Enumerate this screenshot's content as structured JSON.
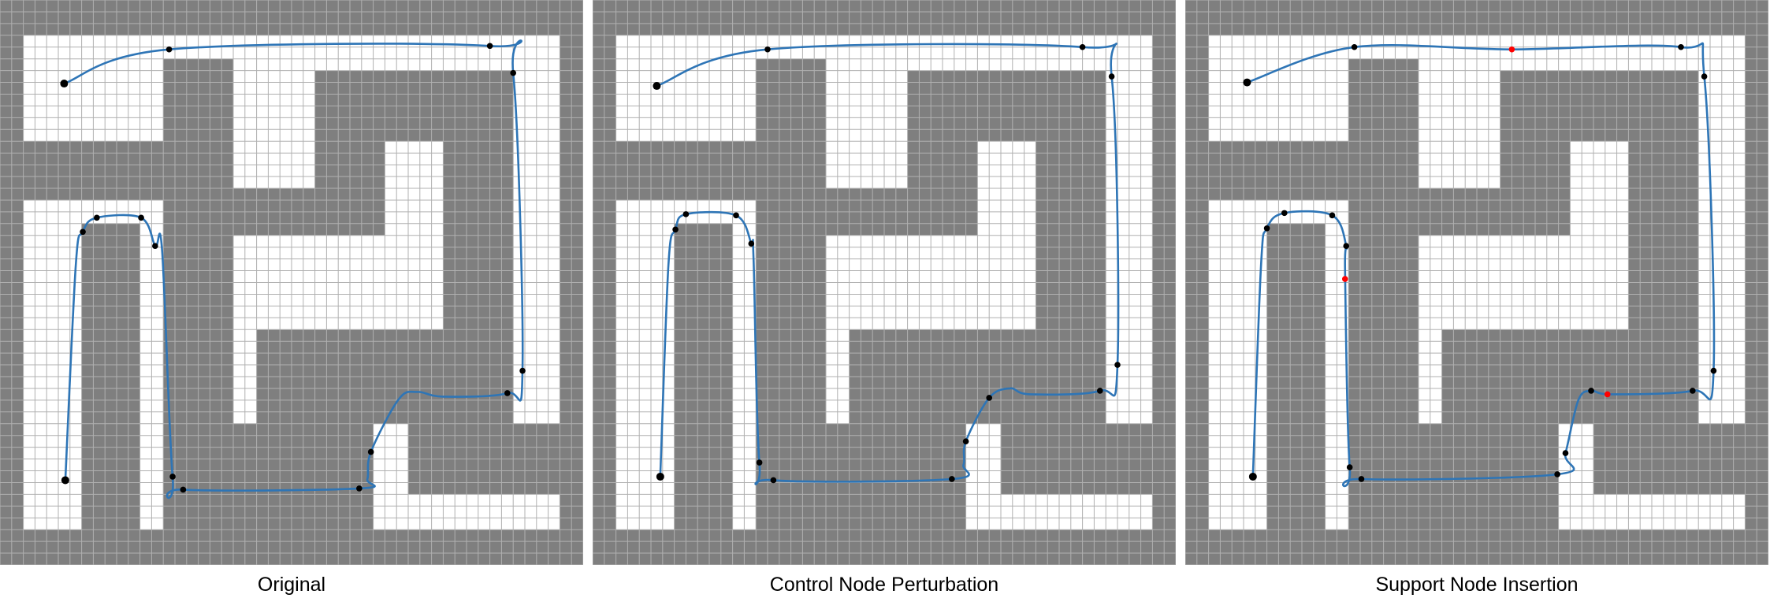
{
  "captions": {
    "original": "Original",
    "perturbation": "Control Node Perturbation",
    "insertion": "Support Node Insertion"
  },
  "colors": {
    "wall": "#7f7f7f",
    "free": "#ffffff",
    "grid_line": "#b0b0b0",
    "path": "#2e75b6",
    "control_node": "#000000",
    "support_node": "#ff0000"
  },
  "grid": {
    "cols": 50,
    "rows": 48,
    "walls": [
      [
        0,
        0,
        50,
        3
      ],
      [
        0,
        0,
        2,
        48
      ],
      [
        48,
        0,
        2,
        48
      ],
      [
        0,
        45,
        50,
        3
      ],
      [
        0,
        12,
        14,
        5
      ],
      [
        14,
        5,
        6,
        40
      ],
      [
        20,
        16,
        13,
        4
      ],
      [
        27,
        6,
        17,
        6
      ],
      [
        27,
        6,
        6,
        14
      ],
      [
        38,
        6,
        6,
        30
      ],
      [
        22,
        28,
        22,
        8
      ],
      [
        20,
        36,
        12,
        6
      ],
      [
        20,
        42,
        12,
        3
      ],
      [
        7,
        19,
        5,
        26
      ],
      [
        35,
        36,
        13,
        6
      ]
    ]
  },
  "panels": [
    {
      "path": [
        [
          5.5,
          7.1
        ],
        [
          14.5,
          4.2
        ],
        [
          42.0,
          3.9
        ],
        [
          44.0,
          6.2
        ],
        [
          44.8,
          31.5
        ],
        [
          43.5,
          33.4
        ],
        [
          38.0,
          33.7
        ],
        [
          35.8,
          33.3
        ],
        [
          34.2,
          33.9
        ],
        [
          31.8,
          38.4
        ],
        [
          31.5,
          40.7
        ],
        [
          30.8,
          41.5
        ],
        [
          15.7,
          41.6
        ],
        [
          14.8,
          40.5
        ],
        [
          13.9,
          21.3
        ],
        [
          13.3,
          20.9
        ],
        [
          12.1,
          18.5
        ],
        [
          8.3,
          18.5
        ],
        [
          7.1,
          19.7
        ],
        [
          6.5,
          22.5
        ],
        [
          5.6,
          40.8
        ]
      ],
      "control": [
        [
          5.5,
          7.1
        ],
        [
          14.5,
          4.2
        ],
        [
          42.0,
          3.9
        ],
        [
          44.0,
          6.2
        ],
        [
          44.8,
          31.5
        ],
        [
          43.5,
          33.4
        ],
        [
          31.8,
          38.4
        ],
        [
          30.8,
          41.5
        ],
        [
          14.8,
          40.5
        ],
        [
          15.7,
          41.6
        ],
        [
          13.3,
          20.9
        ],
        [
          12.1,
          18.5
        ],
        [
          8.3,
          18.5
        ],
        [
          7.1,
          19.7
        ],
        [
          5.6,
          40.8
        ]
      ],
      "support": []
    },
    {
      "path": [
        [
          5.5,
          7.3
        ],
        [
          15.0,
          4.2
        ],
        [
          42.0,
          4.0
        ],
        [
          44.5,
          6.5
        ],
        [
          45.0,
          31.0
        ],
        [
          43.5,
          33.2
        ],
        [
          37.5,
          33.5
        ],
        [
          35.8,
          33.0
        ],
        [
          34.0,
          33.8
        ],
        [
          32.0,
          37.5
        ],
        [
          31.8,
          39.5
        ],
        [
          30.8,
          40.7
        ],
        [
          15.5,
          40.8
        ],
        [
          14.3,
          39.3
        ],
        [
          13.8,
          22.0
        ],
        [
          13.6,
          20.7
        ],
        [
          12.3,
          18.3
        ],
        [
          8.0,
          18.2
        ],
        [
          7.1,
          19.5
        ],
        [
          6.5,
          22.5
        ],
        [
          5.8,
          40.5
        ]
      ],
      "control": [
        [
          5.5,
          7.3
        ],
        [
          15.0,
          4.2
        ],
        [
          42.0,
          4.0
        ],
        [
          44.5,
          6.5
        ],
        [
          45.0,
          31.0
        ],
        [
          43.5,
          33.2
        ],
        [
          34.0,
          33.8
        ],
        [
          32.0,
          37.5
        ],
        [
          30.8,
          40.7
        ],
        [
          15.5,
          40.8
        ],
        [
          14.3,
          39.3
        ],
        [
          13.6,
          20.7
        ],
        [
          12.3,
          18.3
        ],
        [
          8.0,
          18.2
        ],
        [
          7.1,
          19.5
        ],
        [
          5.8,
          40.5
        ]
      ],
      "support": []
    },
    {
      "path": [
        [
          5.3,
          7.0
        ],
        [
          14.5,
          4.0
        ],
        [
          28.0,
          4.2
        ],
        [
          42.5,
          4.0
        ],
        [
          44.5,
          6.5
        ],
        [
          45.3,
          31.5
        ],
        [
          43.5,
          33.2
        ],
        [
          36.5,
          33.5
        ],
        [
          34.8,
          33.2
        ],
        [
          33.7,
          34.0
        ],
        [
          32.6,
          38.5
        ],
        [
          31.9,
          40.3
        ],
        [
          15.1,
          40.7
        ],
        [
          14.1,
          39.7
        ],
        [
          13.7,
          23.0
        ],
        [
          13.8,
          20.9
        ],
        [
          12.6,
          18.3
        ],
        [
          8.5,
          18.1
        ],
        [
          7.0,
          19.4
        ],
        [
          6.5,
          22.5
        ],
        [
          5.8,
          40.5
        ]
      ],
      "control": [
        [
          5.3,
          7.0
        ],
        [
          14.5,
          4.0
        ],
        [
          42.5,
          4.0
        ],
        [
          44.5,
          6.5
        ],
        [
          45.3,
          31.5
        ],
        [
          43.5,
          33.2
        ],
        [
          34.8,
          33.2
        ],
        [
          32.6,
          38.5
        ],
        [
          31.9,
          40.3
        ],
        [
          15.1,
          40.7
        ],
        [
          14.1,
          39.7
        ],
        [
          13.8,
          20.9
        ],
        [
          12.6,
          18.3
        ],
        [
          8.5,
          18.1
        ],
        [
          7.0,
          19.4
        ],
        [
          5.8,
          40.5
        ]
      ],
      "support": [
        [
          28.0,
          4.2
        ],
        [
          13.7,
          23.7
        ],
        [
          36.2,
          33.5
        ]
      ]
    }
  ]
}
